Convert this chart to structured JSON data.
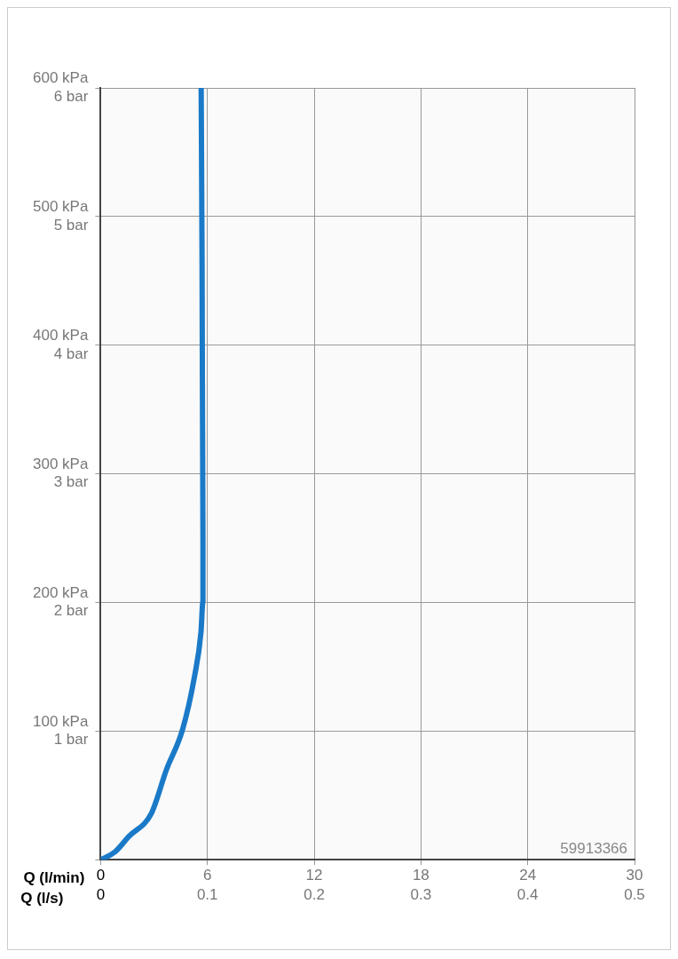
{
  "chart_data": {
    "type": "line",
    "xlabel": "Q (l/min)",
    "x2label": "Q (l/s)",
    "xlim": [
      0,
      30
    ],
    "xticks": [
      0,
      6,
      12,
      18,
      24,
      30
    ],
    "x2lim": [
      0,
      0.5
    ],
    "x2ticks": [
      0,
      0.1,
      0.2,
      0.3,
      0.4,
      0.5
    ],
    "ylim": [
      0,
      600
    ],
    "yticks": [
      {
        "value": 0,
        "label": null
      },
      {
        "value": 100,
        "label": "100 kPa"
      },
      {
        "value": 200,
        "label": "200 kPa"
      },
      {
        "value": 300,
        "label": "300 kPa"
      },
      {
        "value": 400,
        "label": "400 kPa"
      },
      {
        "value": 500,
        "label": "500 kPa"
      },
      {
        "value": 600,
        "label": "600 kPa"
      }
    ],
    "y2lim": [
      0,
      6
    ],
    "y2ticks": [
      {
        "value": 0,
        "label": null
      },
      {
        "value": 1,
        "label": "1 bar"
      },
      {
        "value": 2,
        "label": "2 bar"
      },
      {
        "value": 3,
        "label": "3 bar"
      },
      {
        "value": 4,
        "label": "4 bar"
      },
      {
        "value": 5,
        "label": "5 bar"
      },
      {
        "value": 6,
        "label": "6 bar"
      }
    ],
    "grid": true,
    "legend": false,
    "marker": "none",
    "line_style": "solid",
    "annotations": [
      "59913366"
    ],
    "series": [
      {
        "color": "#1a7ac8",
        "x": [
          0,
          0.8,
          1.58,
          2.85,
          3.7,
          4.6,
          5.27,
          5.64,
          5.75,
          5.75,
          5.7,
          5.65
        ],
        "values": [
          0,
          6,
          18,
          36,
          70,
          101,
          142,
          177,
          201,
          250,
          464,
          600
        ]
      }
    ]
  }
}
